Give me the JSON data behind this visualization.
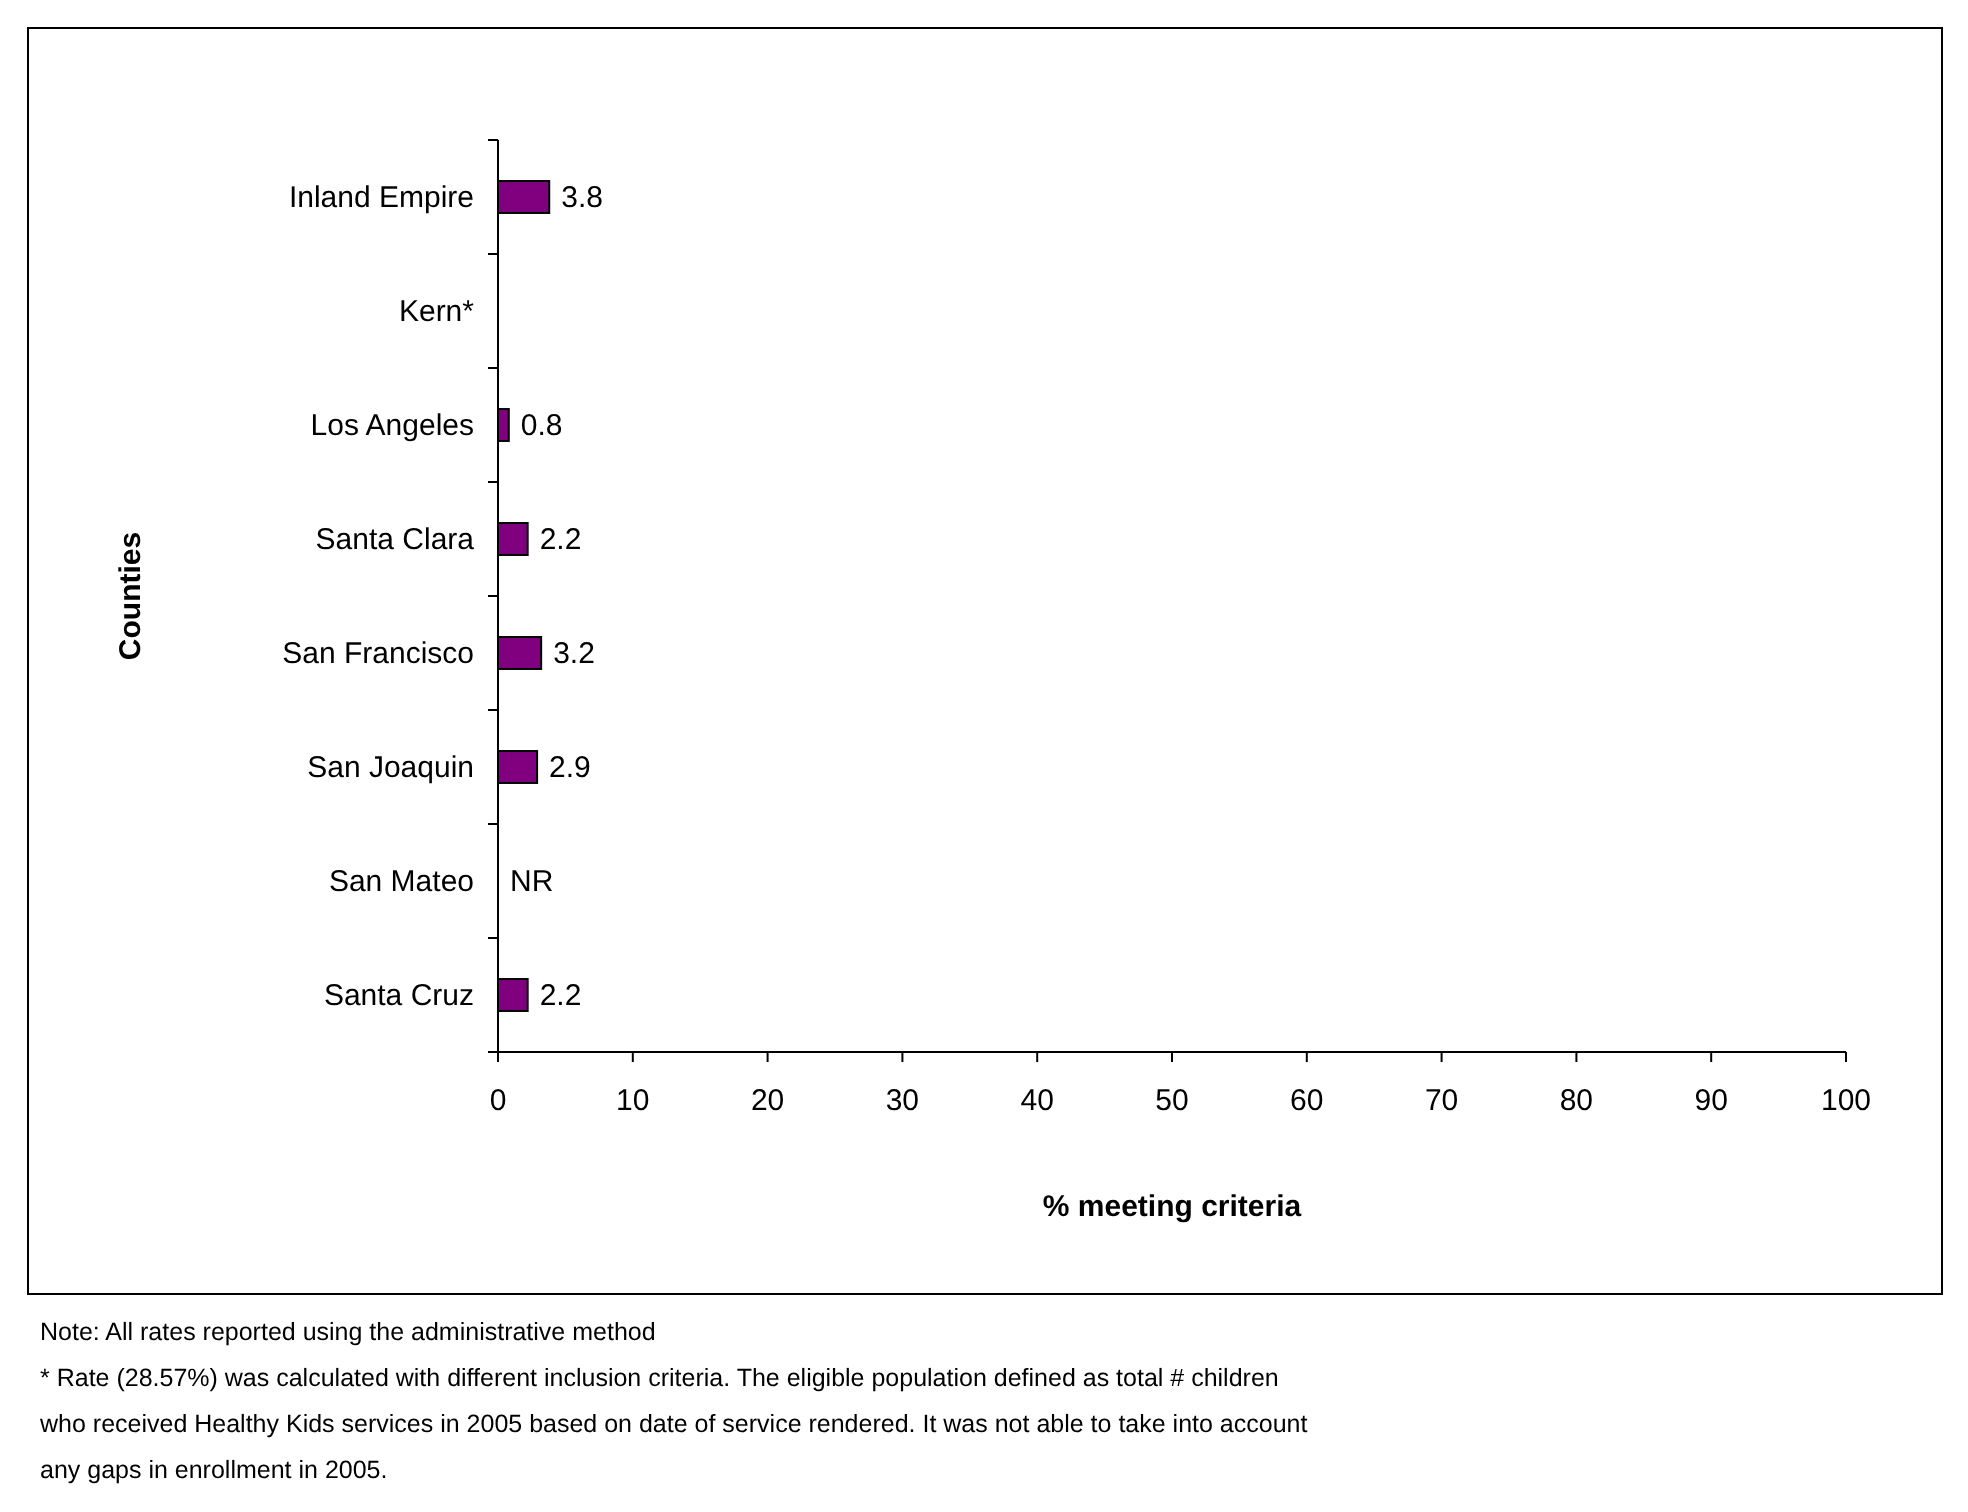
{
  "chart_data": {
    "type": "bar",
    "orientation": "horizontal",
    "xlabel": "% meeting criteria",
    "ylabel": "Counties",
    "categories": [
      "Inland Empire",
      "Kern*",
      "Los Angeles",
      "Santa Clara",
      "San Francisco",
      "San Joaquin",
      "San Mateo",
      "Santa Cruz"
    ],
    "values": [
      3.8,
      null,
      0.8,
      2.2,
      3.2,
      2.9,
      null,
      2.2
    ],
    "value_labels": [
      "3.8",
      null,
      "0.8",
      "2.2",
      "3.2",
      "2.9",
      "NR",
      "2.2"
    ],
    "color": "#800080",
    "xlim": [
      0,
      100
    ],
    "xticks": [
      0,
      10,
      20,
      30,
      40,
      50,
      60,
      70,
      80,
      90,
      100
    ],
    "grid": false,
    "annotations": [
      "Note: All rates reported using the administrative method",
      "* Rate (28.57%) was calculated with different inclusion criteria. The eligible population defined as total # children who received Healthy Kids services in 2005 based on date of service rendered.  It was not able to take into account any gaps in enrollment in 2005."
    ]
  }
}
